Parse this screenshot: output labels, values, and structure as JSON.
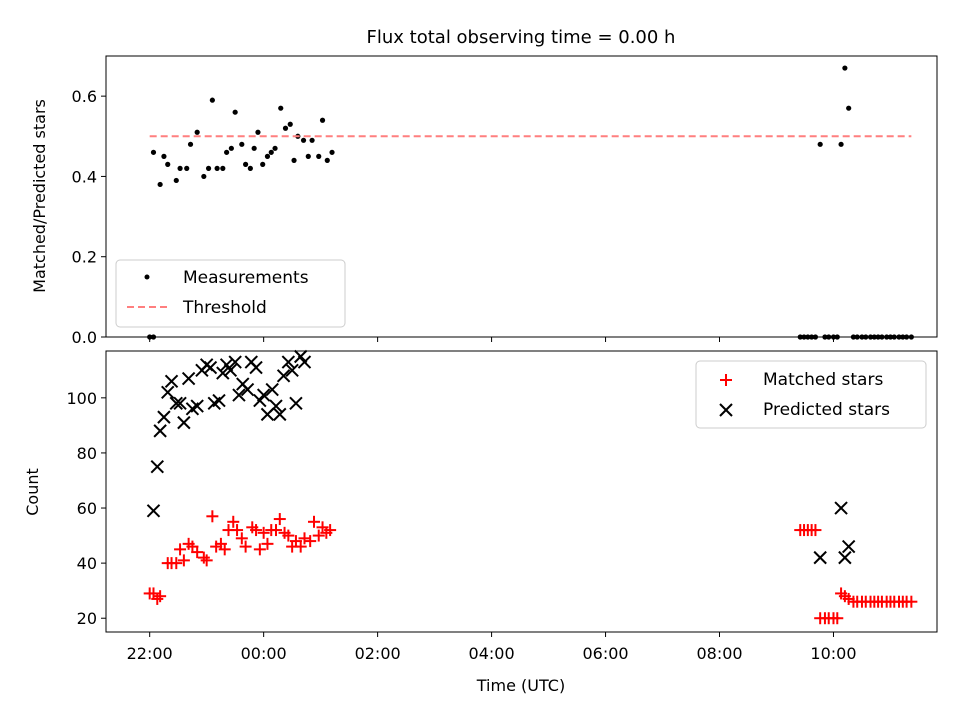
{
  "figure": {
    "title": "Flux total observing time = 0.00 h"
  },
  "colors": {
    "measurement": "#000000",
    "threshold": "#ff7f7f",
    "matched": "#ff0000",
    "predicted": "#000000"
  },
  "chart_data": [
    {
      "type": "scatter",
      "title": "Flux total observing time = 0.00 h",
      "xlabel": "",
      "ylabel": "Matched/Predicted stars",
      "xlim": [
        "21:14",
        "11:49"
      ],
      "ylim": [
        0,
        0.7
      ],
      "yticks": [
        "0.0",
        "0.2",
        "0.4",
        "0.6"
      ],
      "xticks": [
        "22:00",
        "00:00",
        "02:00",
        "04:00",
        "06:00",
        "08:00",
        "10:00"
      ],
      "grid": false,
      "legend": "lower-left",
      "series": [
        {
          "name": "Measurements",
          "marker": "dot",
          "points": [
            [
              "22:00",
              0.0
            ],
            [
              "22:04",
              0.0
            ],
            [
              "22:04",
              0.46
            ],
            [
              "22:11",
              0.38
            ],
            [
              "22:15",
              0.45
            ],
            [
              "22:19",
              0.43
            ],
            [
              "22:28",
              0.39
            ],
            [
              "22:32",
              0.42
            ],
            [
              "22:39",
              0.42
            ],
            [
              "22:43",
              0.48
            ],
            [
              "22:50",
              0.51
            ],
            [
              "22:57",
              0.4
            ],
            [
              "23:02",
              0.42
            ],
            [
              "23:06",
              0.59
            ],
            [
              "23:11",
              0.42
            ],
            [
              "23:17",
              0.42
            ],
            [
              "23:21",
              0.46
            ],
            [
              "23:26",
              0.47
            ],
            [
              "23:30",
              0.56
            ],
            [
              "23:37",
              0.48
            ],
            [
              "23:41",
              0.43
            ],
            [
              "23:46",
              0.42
            ],
            [
              "23:50",
              0.47
            ],
            [
              "23:54",
              0.51
            ],
            [
              "23:59",
              0.43
            ],
            [
              "00:04",
              0.45
            ],
            [
              "00:08",
              0.46
            ],
            [
              "00:12",
              0.47
            ],
            [
              "00:18",
              0.57
            ],
            [
              "00:23",
              0.52
            ],
            [
              "00:28",
              0.53
            ],
            [
              "00:32",
              0.44
            ],
            [
              "00:36",
              0.5
            ],
            [
              "00:42",
              0.49
            ],
            [
              "00:47",
              0.45
            ],
            [
              "00:51",
              0.49
            ],
            [
              "00:58",
              0.45
            ],
            [
              "01:02",
              0.54
            ],
            [
              "01:07",
              0.44
            ],
            [
              "01:12",
              0.46
            ],
            [
              "09:25",
              0.0
            ],
            [
              "09:29",
              0.0
            ],
            [
              "09:33",
              0.0
            ],
            [
              "09:37",
              0.0
            ],
            [
              "09:41",
              0.0
            ],
            [
              "09:46",
              0.48
            ],
            [
              "09:51",
              0.0
            ],
            [
              "09:55",
              0.0
            ],
            [
              "10:00",
              0.0
            ],
            [
              "10:04",
              0.0
            ],
            [
              "10:08",
              0.48
            ],
            [
              "10:12",
              0.67
            ],
            [
              "10:16",
              0.57
            ],
            [
              "10:21",
              0.0
            ],
            [
              "10:25",
              0.0
            ],
            [
              "10:30",
              0.0
            ],
            [
              "10:34",
              0.0
            ],
            [
              "10:39",
              0.0
            ],
            [
              "10:43",
              0.0
            ],
            [
              "10:47",
              0.0
            ],
            [
              "10:51",
              0.0
            ],
            [
              "10:56",
              0.0
            ],
            [
              "11:00",
              0.0
            ],
            [
              "11:04",
              0.0
            ],
            [
              "11:09",
              0.0
            ],
            [
              "11:13",
              0.0
            ],
            [
              "11:17",
              0.0
            ],
            [
              "11:22",
              0.0
            ]
          ]
        },
        {
          "name": "Threshold",
          "style": "dashed-line",
          "points": [
            [
              "22:00",
              0.5
            ],
            [
              "11:22",
              0.5
            ]
          ]
        }
      ]
    },
    {
      "type": "scatter",
      "xlabel": "Time (UTC)",
      "ylabel": "Count",
      "xlim": [
        "21:14",
        "11:49"
      ],
      "ylim": [
        15,
        117
      ],
      "yticks": [
        "20",
        "40",
        "60",
        "80",
        "100"
      ],
      "xticks": [
        "22:00",
        "00:00",
        "02:00",
        "04:00",
        "06:00",
        "08:00",
        "10:00"
      ],
      "grid": false,
      "legend": "top-right",
      "series": [
        {
          "name": "Matched stars",
          "marker": "plus",
          "points": [
            [
              "22:00",
              29
            ],
            [
              "22:04",
              29
            ],
            [
              "22:08",
              27
            ],
            [
              "22:11",
              28
            ],
            [
              "22:19",
              40
            ],
            [
              "22:23",
              40
            ],
            [
              "22:28",
              40
            ],
            [
              "22:32",
              45
            ],
            [
              "22:36",
              41
            ],
            [
              "22:41",
              47
            ],
            [
              "22:45",
              46
            ],
            [
              "22:50",
              44
            ],
            [
              "22:57",
              42
            ],
            [
              "23:00",
              41
            ],
            [
              "23:06",
              57
            ],
            [
              "23:10",
              46
            ],
            [
              "23:15",
              47
            ],
            [
              "23:19",
              45
            ],
            [
              "23:23",
              52
            ],
            [
              "23:28",
              55
            ],
            [
              "23:32",
              52
            ],
            [
              "23:37",
              49
            ],
            [
              "23:41",
              46
            ],
            [
              "23:48",
              53
            ],
            [
              "23:52",
              52
            ],
            [
              "23:56",
              45
            ],
            [
              "00:00",
              51
            ],
            [
              "00:04",
              47
            ],
            [
              "00:08",
              52
            ],
            [
              "00:13",
              52
            ],
            [
              "00:17",
              56
            ],
            [
              "00:22",
              51
            ],
            [
              "00:26",
              50
            ],
            [
              "00:30",
              46
            ],
            [
              "00:34",
              48
            ],
            [
              "00:39",
              46
            ],
            [
              "00:43",
              49
            ],
            [
              "00:49",
              48
            ],
            [
              "00:53",
              55
            ],
            [
              "00:58",
              50
            ],
            [
              "01:02",
              53
            ],
            [
              "01:06",
              51
            ],
            [
              "01:10",
              52
            ],
            [
              "09:25",
              52
            ],
            [
              "09:29",
              52
            ],
            [
              "09:33",
              52
            ],
            [
              "09:37",
              52
            ],
            [
              "09:41",
              52
            ],
            [
              "09:46",
              20
            ],
            [
              "09:51",
              20
            ],
            [
              "09:55",
              20
            ],
            [
              "10:00",
              20
            ],
            [
              "10:04",
              20
            ],
            [
              "10:08",
              29
            ],
            [
              "10:12",
              28
            ],
            [
              "10:16",
              27
            ],
            [
              "10:21",
              26
            ],
            [
              "10:25",
              26
            ],
            [
              "10:30",
              26
            ],
            [
              "10:34",
              26
            ],
            [
              "10:39",
              26
            ],
            [
              "10:43",
              26
            ],
            [
              "10:47",
              26
            ],
            [
              "10:51",
              26
            ],
            [
              "10:56",
              26
            ],
            [
              "11:00",
              26
            ],
            [
              "11:04",
              26
            ],
            [
              "11:09",
              26
            ],
            [
              "11:13",
              26
            ],
            [
              "11:17",
              26
            ],
            [
              "11:22",
              26
            ]
          ]
        },
        {
          "name": "Predicted stars",
          "marker": "x",
          "points": [
            [
              "22:04",
              59
            ],
            [
              "22:08",
              75
            ],
            [
              "22:11",
              88
            ],
            [
              "22:15",
              93
            ],
            [
              "22:19",
              102
            ],
            [
              "22:23",
              106
            ],
            [
              "22:28",
              98
            ],
            [
              "22:32",
              98
            ],
            [
              "22:36",
              91
            ],
            [
              "22:41",
              107
            ],
            [
              "22:45",
              96
            ],
            [
              "22:50",
              97
            ],
            [
              "22:55",
              110
            ],
            [
              "23:00",
              112
            ],
            [
              "23:04",
              111
            ],
            [
              "23:08",
              98
            ],
            [
              "23:13",
              99
            ],
            [
              "23:17",
              109
            ],
            [
              "23:21",
              112
            ],
            [
              "23:25",
              110
            ],
            [
              "23:30",
              113
            ],
            [
              "23:34",
              101
            ],
            [
              "23:38",
              105
            ],
            [
              "23:43",
              103
            ],
            [
              "23:47",
              113
            ],
            [
              "23:52",
              111
            ],
            [
              "23:56",
              99
            ],
            [
              "00:00",
              101
            ],
            [
              "00:04",
              94
            ],
            [
              "00:09",
              103
            ],
            [
              "00:13",
              97
            ],
            [
              "00:17",
              94
            ],
            [
              "00:21",
              108
            ],
            [
              "00:26",
              113
            ],
            [
              "00:30",
              110
            ],
            [
              "00:34",
              98
            ],
            [
              "00:39",
              115
            ],
            [
              "00:43",
              113
            ],
            [
              "09:46",
              42
            ],
            [
              "10:08",
              60
            ],
            [
              "10:12",
              42
            ],
            [
              "10:16",
              46
            ]
          ]
        }
      ]
    }
  ]
}
